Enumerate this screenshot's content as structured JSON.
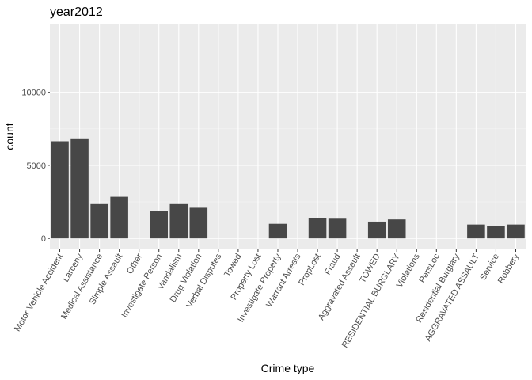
{
  "chart_data": {
    "type": "bar",
    "title": "year2012",
    "xlabel": "Crime type",
    "ylabel": "count",
    "categories": [
      "Motor Vehicle Accident",
      "Larceny",
      "Medical Assistance",
      "Simple Assault",
      "Other",
      "Investigate Person",
      "Vandalism",
      "Drug Violation",
      "Verbal Disputes",
      "Towed",
      "Property Lost",
      "Investigate Property",
      "Warrant Arrests",
      "PropLost",
      "Fraud",
      "Aggravated Assault",
      "TOWED",
      "RESIDENTIAL BURGLARY",
      "Violations",
      "PersLoc",
      "Residential Burglary",
      "AGGRAVATED ASSAULT",
      "Service",
      "Robbery"
    ],
    "values": [
      6650,
      6850,
      2350,
      2850,
      0,
      1900,
      2350,
      2100,
      0,
      0,
      0,
      1000,
      0,
      1400,
      1350,
      0,
      1150,
      1300,
      0,
      0,
      0,
      950,
      850,
      950
    ],
    "ylim": [
      -750,
      14700
    ],
    "yticks": [
      0,
      5000,
      10000
    ],
    "ytick_labels": [
      "0",
      "5000",
      "10000"
    ],
    "grid": true,
    "colors": {
      "bar": "#474747",
      "panel": "#ebebeb",
      "grid_major": "#ffffff",
      "grid_minor": "#f5f5f5",
      "tick_text": "#4d4d4d"
    }
  }
}
